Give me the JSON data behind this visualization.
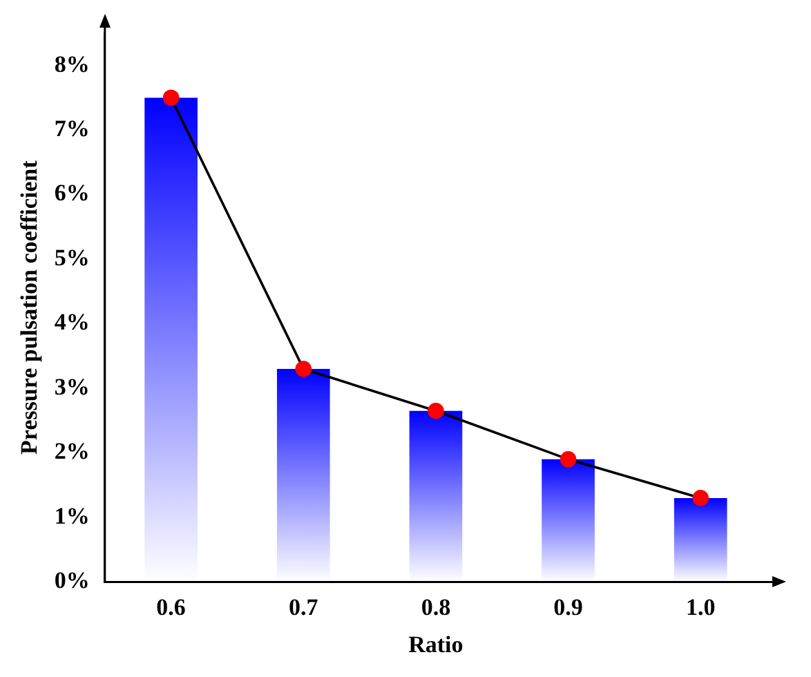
{
  "chart_data": {
    "type": "bar",
    "xlabel": "Ratio",
    "ylabel": "Pressure pulsation coefficient",
    "categories": [
      "0.6",
      "0.7",
      "0.8",
      "0.9",
      "1.0"
    ],
    "series": [
      {
        "color": "#0000ff",
        "values": [
          7.5,
          3.3,
          2.65,
          1.9,
          1.3
        ]
      },
      {
        "type": "line",
        "color": "#000000",
        "colors": [
          "#ff0000",
          "#ff0000",
          "#ff0000",
          "#ff0000",
          "#ff0000"
        ],
        "marker": "circle",
        "values": [
          7.5,
          3.3,
          2.65,
          1.9,
          1.3
        ]
      }
    ],
    "ylim": [
      0,
      8.5
    ],
    "yticks": [
      {
        "value": 0,
        "label": "0%"
      },
      {
        "value": 1,
        "label": "1%"
      },
      {
        "value": 2,
        "label": "2%"
      },
      {
        "value": 3,
        "label": "3%"
      },
      {
        "value": 4,
        "label": "4%"
      },
      {
        "value": 5,
        "label": "5%"
      },
      {
        "value": 6,
        "label": "6%"
      },
      {
        "value": 7,
        "label": "7%"
      },
      {
        "value": 8,
        "label": "8%"
      }
    ],
    "grid": false,
    "legend": false
  }
}
